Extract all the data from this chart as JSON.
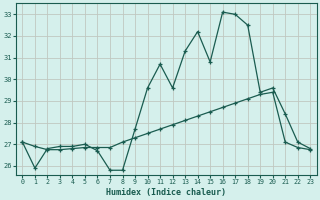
{
  "title": "",
  "xlabel": "Humidex (Indice chaleur)",
  "ylabel": "",
  "xlim": [
    -0.5,
    23.5
  ],
  "ylim": [
    25.6,
    33.5
  ],
  "yticks": [
    26,
    27,
    28,
    29,
    30,
    31,
    32,
    33
  ],
  "xticks": [
    0,
    1,
    2,
    3,
    4,
    5,
    6,
    7,
    8,
    9,
    10,
    11,
    12,
    13,
    14,
    15,
    16,
    17,
    18,
    19,
    20,
    21,
    22,
    23
  ],
  "bg_color": "#d5f0ec",
  "line_color": "#1a5c50",
  "grid_color": "#c0c8c0",
  "line1_x": [
    0,
    1,
    2,
    3,
    4,
    5,
    6,
    7,
    8,
    9,
    10,
    11,
    12,
    13,
    14,
    15,
    16,
    17,
    18,
    19,
    20,
    21,
    22,
    23
  ],
  "line1_y": [
    27.1,
    25.9,
    26.8,
    26.9,
    26.9,
    27.0,
    26.7,
    25.8,
    25.8,
    27.7,
    29.6,
    30.7,
    29.6,
    31.3,
    32.2,
    30.8,
    33.1,
    33.0,
    32.5,
    29.4,
    29.6,
    28.4,
    27.1,
    26.8
  ],
  "line2_x": [
    0,
    1,
    2,
    3,
    4,
    5,
    6,
    7,
    8,
    9,
    10,
    11,
    12,
    13,
    14,
    15,
    16,
    17,
    18,
    19,
    20,
    21,
    22,
    23
  ],
  "line2_y": [
    27.1,
    26.9,
    26.75,
    26.75,
    26.8,
    26.85,
    26.85,
    26.85,
    27.1,
    27.3,
    27.5,
    27.7,
    27.9,
    28.1,
    28.3,
    28.5,
    28.7,
    28.9,
    29.1,
    29.3,
    29.4,
    27.1,
    26.85,
    26.75
  ],
  "figsize": [
    3.2,
    2.0
  ],
  "dpi": 100
}
